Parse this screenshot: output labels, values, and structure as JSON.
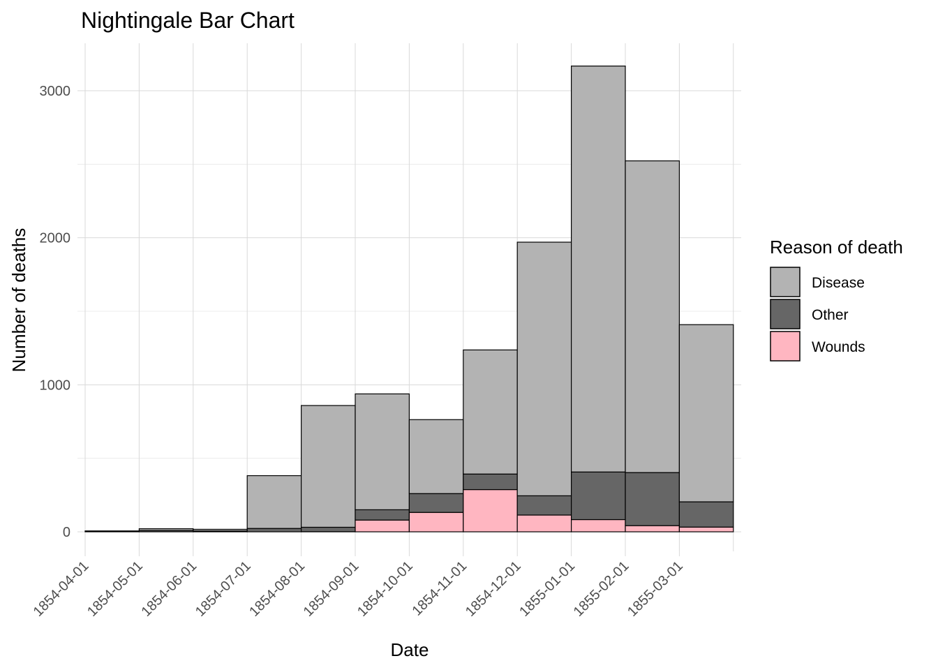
{
  "chart_data": {
    "type": "bar",
    "stacked": true,
    "title": "Nightingale Bar Chart",
    "xlabel": "Date",
    "ylabel": "Number of deaths",
    "categories": [
      "1854-04-01",
      "1854-05-01",
      "1854-06-01",
      "1854-07-01",
      "1854-08-01",
      "1854-09-01",
      "1854-10-01",
      "1854-11-01",
      "1854-12-01",
      "1855-01-01",
      "1855-02-01",
      "1855-03-01"
    ],
    "series": [
      {
        "name": "Wounds",
        "color": "#ffb6c1",
        "values": [
          0,
          0,
          0,
          0,
          1,
          80,
          132,
          287,
          114,
          83,
          42,
          32
        ]
      },
      {
        "name": "Other",
        "color": "#666666",
        "values": [
          5,
          9,
          6,
          23,
          30,
          70,
          128,
          106,
          131,
          324,
          361,
          172
        ]
      },
      {
        "name": "Disease",
        "color": "#b3b3b3",
        "values": [
          1,
          12,
          11,
          359,
          828,
          788,
          503,
          844,
          1725,
          2761,
          2120,
          1205
        ]
      }
    ],
    "yticks": [
      0,
      1000,
      2000,
      3000
    ],
    "ytick_labels": [
      "0",
      "1000",
      "2000",
      "3000"
    ],
    "ylim": [
      -130,
      3320
    ],
    "grid": true,
    "legend": {
      "title": "Reason of death",
      "placement": "right",
      "order": [
        "Disease",
        "Other",
        "Wounds"
      ]
    }
  }
}
